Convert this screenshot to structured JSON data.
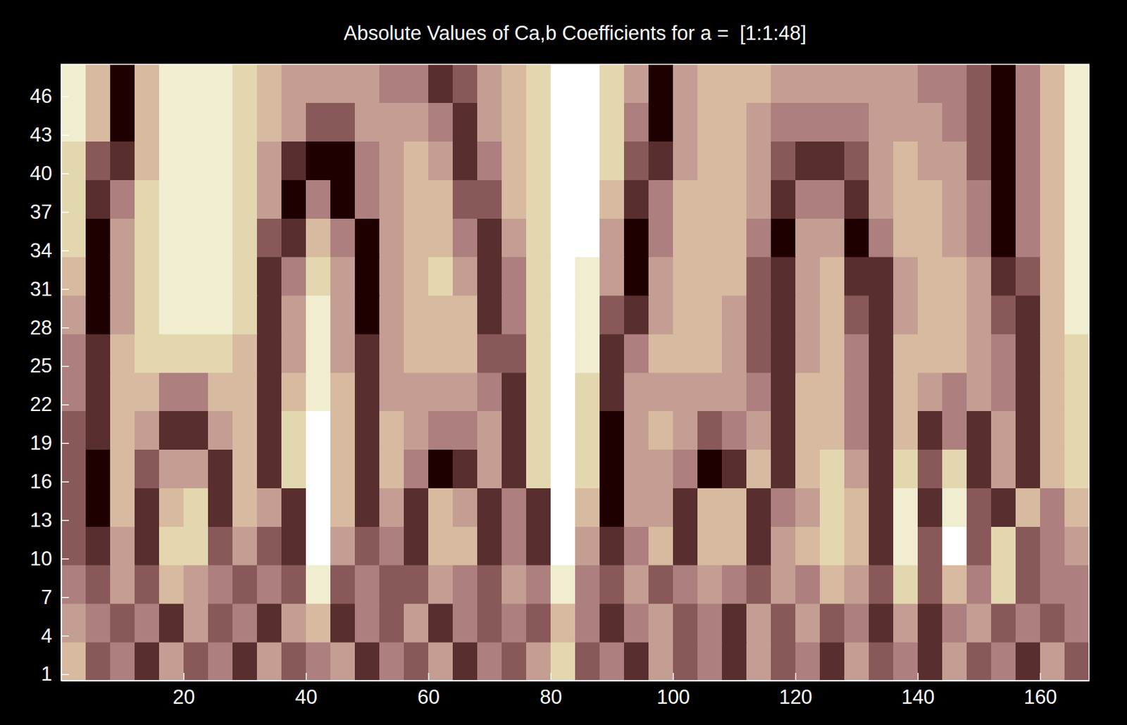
{
  "chart_data": {
    "type": "heatmap",
    "title": "Absolute Values of Ca,b Coefficients for a =  [1:1:48]",
    "x": [
      2,
      6,
      10,
      14,
      18,
      22,
      26,
      30,
      34,
      38,
      42,
      46,
      50,
      54,
      58,
      62,
      66,
      70,
      74,
      78,
      82,
      86,
      90,
      94,
      98,
      102,
      106,
      110,
      114,
      118,
      122,
      126,
      130,
      134,
      138,
      142,
      146,
      150,
      154,
      158,
      162,
      166
    ],
    "y": [
      2,
      5,
      8,
      11,
      14,
      17,
      20,
      23,
      26,
      29,
      32,
      35,
      38,
      41,
      44,
      47
    ],
    "z": [
      [
        6,
        3,
        4,
        2,
        5,
        3,
        4,
        2,
        5,
        3,
        4,
        5,
        2,
        4,
        3,
        5,
        2,
        4,
        3,
        5,
        7,
        3,
        4,
        2,
        5,
        3,
        4,
        2,
        5,
        3,
        4,
        2,
        5,
        3,
        4,
        2,
        5,
        3,
        4,
        2,
        5,
        3
      ],
      [
        5,
        4,
        3,
        4,
        2,
        5,
        3,
        4,
        2,
        5,
        6,
        2,
        4,
        3,
        5,
        2,
        4,
        3,
        4,
        3,
        6,
        4,
        2,
        4,
        5,
        3,
        4,
        2,
        5,
        3,
        5,
        3,
        4,
        2,
        5,
        2,
        4,
        5,
        3,
        4,
        3,
        4
      ],
      [
        4,
        3,
        5,
        3,
        6,
        5,
        4,
        3,
        4,
        3,
        8,
        3,
        4,
        3,
        3,
        5,
        4,
        3,
        5,
        4,
        8,
        4,
        3,
        5,
        3,
        4,
        5,
        4,
        3,
        5,
        4,
        6,
        5,
        3,
        7,
        3,
        6,
        4,
        7,
        3,
        4,
        4
      ],
      [
        3,
        2,
        5,
        2,
        7,
        7,
        3,
        5,
        3,
        2,
        9,
        5,
        3,
        4,
        2,
        6,
        6,
        2,
        4,
        2,
        9,
        5,
        2,
        4,
        6,
        2,
        6,
        6,
        2,
        5,
        6,
        7,
        6,
        2,
        8,
        3,
        9,
        3,
        7,
        3,
        4,
        5
      ],
      [
        3,
        1,
        6,
        2,
        6,
        7,
        2,
        6,
        5,
        2,
        9,
        6,
        2,
        5,
        2,
        6,
        5,
        2,
        4,
        2,
        9,
        6,
        1,
        5,
        5,
        2,
        6,
        6,
        2,
        4,
        5,
        7,
        6,
        2,
        8,
        2,
        8,
        3,
        2,
        6,
        4,
        6
      ],
      [
        3,
        1,
        6,
        3,
        5,
        5,
        2,
        6,
        2,
        7,
        9,
        6,
        2,
        6,
        4,
        1,
        2,
        5,
        2,
        7,
        9,
        7,
        1,
        5,
        5,
        4,
        1,
        2,
        6,
        2,
        6,
        7,
        5,
        2,
        7,
        3,
        7,
        2,
        5,
        2,
        6,
        7
      ],
      [
        3,
        2,
        6,
        5,
        2,
        2,
        5,
        6,
        2,
        7,
        9,
        6,
        2,
        6,
        5,
        4,
        4,
        5,
        2,
        7,
        9,
        7,
        1,
        5,
        6,
        5,
        3,
        4,
        5,
        2,
        6,
        6,
        4,
        2,
        6,
        2,
        4,
        2,
        5,
        2,
        6,
        7
      ],
      [
        4,
        2,
        6,
        6,
        4,
        4,
        6,
        6,
        2,
        6,
        8,
        6,
        2,
        5,
        5,
        5,
        5,
        4,
        2,
        7,
        9,
        7,
        2,
        5,
        5,
        5,
        5,
        5,
        4,
        2,
        6,
        6,
        4,
        2,
        6,
        5,
        4,
        5,
        4,
        2,
        6,
        7
      ],
      [
        4,
        2,
        6,
        7,
        7,
        7,
        7,
        6,
        2,
        5,
        8,
        5,
        2,
        5,
        6,
        6,
        6,
        3,
        3,
        7,
        9,
        8,
        2,
        4,
        6,
        6,
        6,
        5,
        3,
        2,
        5,
        6,
        4,
        2,
        6,
        6,
        6,
        5,
        4,
        2,
        6,
        7
      ],
      [
        5,
        1,
        5,
        7,
        8,
        8,
        8,
        7,
        2,
        5,
        8,
        5,
        1,
        5,
        6,
        6,
        6,
        2,
        4,
        7,
        9,
        8,
        3,
        2,
        5,
        6,
        6,
        5,
        3,
        2,
        5,
        6,
        3,
        2,
        5,
        6,
        6,
        5,
        3,
        2,
        6,
        8
      ],
      [
        6,
        1,
        5,
        7,
        8,
        8,
        8,
        7,
        2,
        4,
        7,
        5,
        1,
        5,
        6,
        7,
        5,
        2,
        4,
        7,
        9,
        8,
        5,
        1,
        5,
        6,
        6,
        6,
        3,
        2,
        5,
        6,
        2,
        2,
        5,
        6,
        6,
        5,
        2,
        3,
        6,
        8
      ],
      [
        7,
        1,
        5,
        7,
        8,
        8,
        8,
        7,
        3,
        2,
        6,
        4,
        1,
        5,
        6,
        6,
        4,
        2,
        5,
        7,
        9,
        9,
        5,
        1,
        4,
        6,
        6,
        6,
        4,
        1,
        5,
        5,
        1,
        4,
        6,
        6,
        5,
        4,
        1,
        4,
        6,
        8
      ],
      [
        7,
        2,
        4,
        7,
        8,
        8,
        8,
        7,
        5,
        1,
        4,
        1,
        4,
        5,
        6,
        6,
        3,
        3,
        6,
        7,
        9,
        9,
        6,
        2,
        4,
        6,
        6,
        6,
        5,
        2,
        4,
        4,
        2,
        5,
        6,
        6,
        5,
        4,
        1,
        4,
        6,
        8
      ],
      [
        7,
        3,
        2,
        6,
        8,
        8,
        8,
        7,
        5,
        2,
        1,
        1,
        4,
        5,
        6,
        5,
        2,
        4,
        6,
        7,
        9,
        9,
        7,
        3,
        2,
        5,
        6,
        6,
        5,
        3,
        2,
        2,
        3,
        5,
        6,
        5,
        5,
        3,
        1,
        4,
        6,
        8
      ],
      [
        8,
        6,
        1,
        6,
        8,
        8,
        8,
        7,
        6,
        5,
        3,
        3,
        5,
        5,
        5,
        4,
        2,
        5,
        6,
        7,
        9,
        9,
        7,
        4,
        1,
        5,
        6,
        6,
        5,
        4,
        4,
        4,
        4,
        5,
        5,
        5,
        4,
        3,
        1,
        4,
        6,
        8
      ],
      [
        8,
        6,
        1,
        6,
        8,
        8,
        8,
        7,
        6,
        5,
        5,
        5,
        5,
        4,
        4,
        2,
        3,
        5,
        6,
        7,
        9,
        9,
        7,
        5,
        1,
        5,
        6,
        6,
        6,
        5,
        5,
        5,
        5,
        5,
        5,
        4,
        4,
        3,
        1,
        4,
        6,
        8
      ]
    ],
    "xlim": [
      0,
      168
    ],
    "ylim": [
      0.5,
      48.5
    ],
    "xticks": [
      20,
      40,
      60,
      80,
      100,
      120,
      140,
      160
    ],
    "yticks": [
      1,
      4,
      7,
      10,
      13,
      16,
      19,
      22,
      25,
      28,
      31,
      34,
      37,
      40,
      43,
      46
    ]
  }
}
